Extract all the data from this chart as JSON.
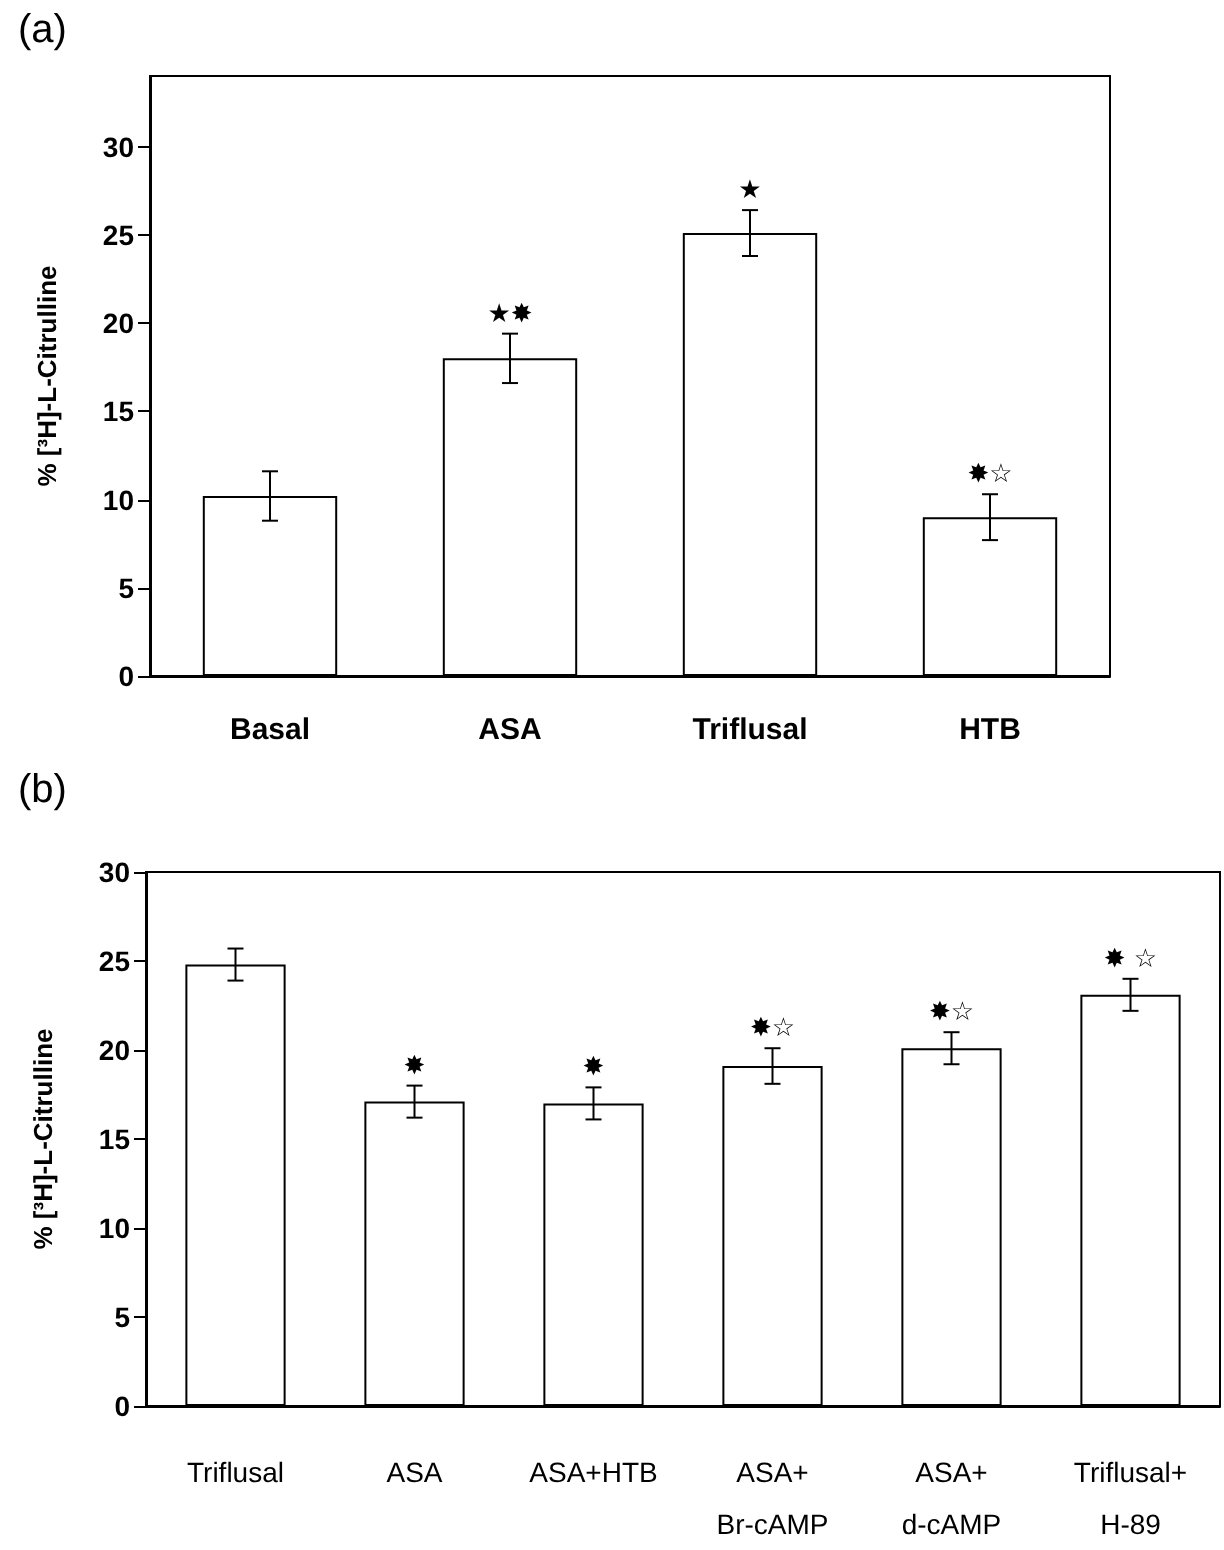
{
  "chart_data": [
    {
      "type": "bar",
      "title": "(a)",
      "ylabel": "% [³H]-L-Citrulline",
      "categories": [
        "Basal",
        "ASA",
        "Triflusal",
        "HTB"
      ],
      "values": [
        10.2,
        18.0,
        25.1,
        9.0
      ],
      "color": "#ffffff",
      "errors": [
        1.4,
        1.4,
        1.3,
        1.3
      ],
      "ylim": [
        0,
        34
      ],
      "yticks": [
        0,
        5,
        10,
        15,
        20,
        25,
        30
      ],
      "grid": false,
      "annotations": [
        {
          "text": "★✸",
          "x": "ASA",
          "y": 18.0
        },
        {
          "text": "★",
          "x": "Triflusal",
          "y": 25.1
        },
        {
          "text": "✸☆",
          "x": "HTB",
          "y": 9.0
        }
      ]
    },
    {
      "type": "bar",
      "title": "(b)",
      "ylabel": "% [³H]-L-Citrulline",
      "categories": [
        "Triflusal",
        "ASA",
        "ASA+HTB",
        "ASA+\nBr-cAMP",
        "ASA+\nd-cAMP",
        "Triflusal+\nH-89"
      ],
      "values": [
        24.8,
        17.1,
        17.0,
        19.1,
        20.1,
        23.1
      ],
      "color": "#ffffff",
      "errors": [
        0.9,
        0.9,
        0.9,
        1.0,
        0.9,
        0.9
      ],
      "ylim": [
        0,
        30
      ],
      "yticks": [
        0,
        5,
        10,
        15,
        20,
        25,
        30
      ],
      "grid": false,
      "annotations": [
        {
          "text": "✸",
          "x": "ASA",
          "y": 17.1
        },
        {
          "text": "✸",
          "x": "ASA+HTB",
          "y": 17.0
        },
        {
          "text": "✸☆",
          "x": "ASA+\nBr-cAMP",
          "y": 19.1
        },
        {
          "text": "✸☆",
          "x": "ASA+\nd-cAMP",
          "y": 20.1
        },
        {
          "text": "✸ ☆",
          "x": "Triflusal+\nH-89",
          "y": 23.1
        }
      ]
    }
  ]
}
